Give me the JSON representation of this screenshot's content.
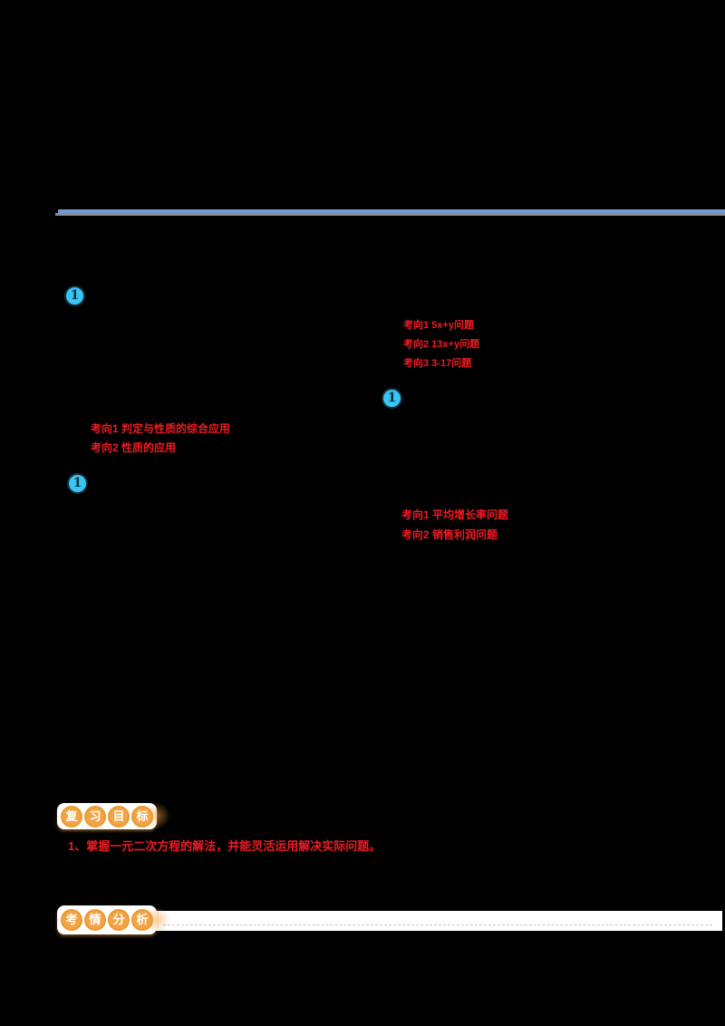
{
  "page": {
    "background": "#000000"
  },
  "colors": {
    "divider_blue": "#6d9bd3",
    "divider_gray": "#8d8d8d",
    "marker_cyan": "#38c6f4",
    "marker_border": "#15303e",
    "red_text": "#ed1c24",
    "badge_orange": "#f2a445",
    "badge_text": "#ffffff"
  },
  "markers": {
    "label": "1"
  },
  "mindmap": {
    "block_a": {
      "lines": [
        "考向1  5x+y问题",
        "考向2  13x+y问题",
        "考向3  3-17问题"
      ]
    },
    "block_b": {
      "lines": [
        "考向1  判定与性质的综合应用",
        "考向2  性质的应用"
      ]
    },
    "block_c": {
      "lines": [
        "考向1  平均增长率问题",
        "考向2  销售利润问题"
      ]
    }
  },
  "review_goal": {
    "badge_chars": [
      "复",
      "习",
      "目",
      "标"
    ],
    "items": [
      "1、掌握一元二次方程的解法，并能灵活运用解决实际问题。"
    ]
  },
  "exam_analysis": {
    "badge_chars": [
      "考",
      "情",
      "分",
      "析"
    ]
  }
}
